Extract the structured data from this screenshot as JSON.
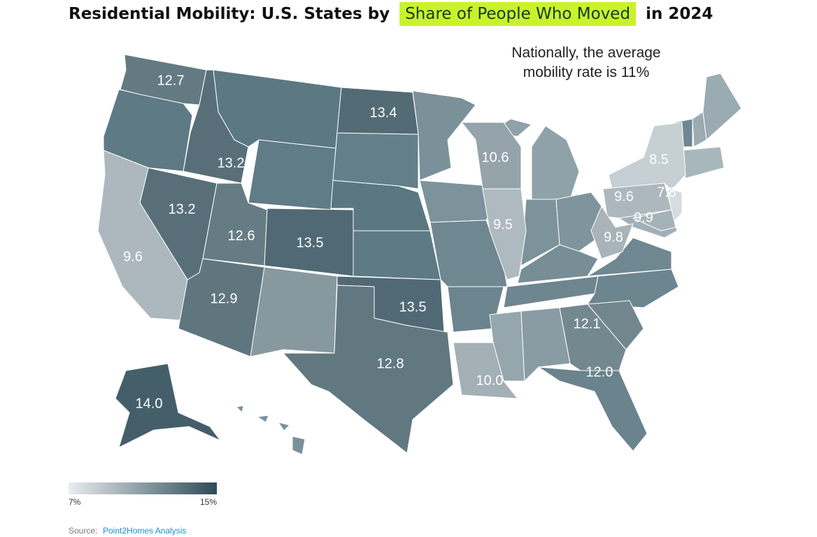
{
  "chart_data": {
    "type": "choropleth",
    "title": {
      "before": "Residential Mobility: U.S. States by",
      "highlight": "Share of People Who Moved",
      "after": "in 2024"
    },
    "annotation": [
      "Nationally, the average",
      "mobility rate is 11%"
    ],
    "values": [
      12.7,
      13.4,
      13.2,
      13.2,
      12.6,
      13.5,
      9.6,
      12.9,
      13.5,
      12.8,
      14.0,
      10.6,
      9.5,
      8.5,
      7.8,
      9.6,
      9.9,
      9.8,
      12.1,
      12.0,
      10.0
    ],
    "value_labels": [
      "12.7",
      "13.4",
      "13.2",
      "13.2",
      "12.6",
      "13.5",
      "9.6",
      "12.9",
      "13.5",
      "12.8",
      "14.0",
      "10.6",
      "9.5",
      "8.5",
      "7.8",
      "9.6",
      "9.9",
      "9.8",
      "12.1",
      "12.0",
      "10.0"
    ],
    "colorscale": {
      "range": [
        7,
        15
      ],
      "colors": [
        "#e9edef",
        "#2e4b57"
      ],
      "ticks": [
        {
          "value": 7,
          "label": "7%"
        },
        {
          "value": 15,
          "label": "15%"
        }
      ]
    },
    "source": {
      "label": "Source:",
      "link": "Point2Homes Analysis"
    }
  }
}
